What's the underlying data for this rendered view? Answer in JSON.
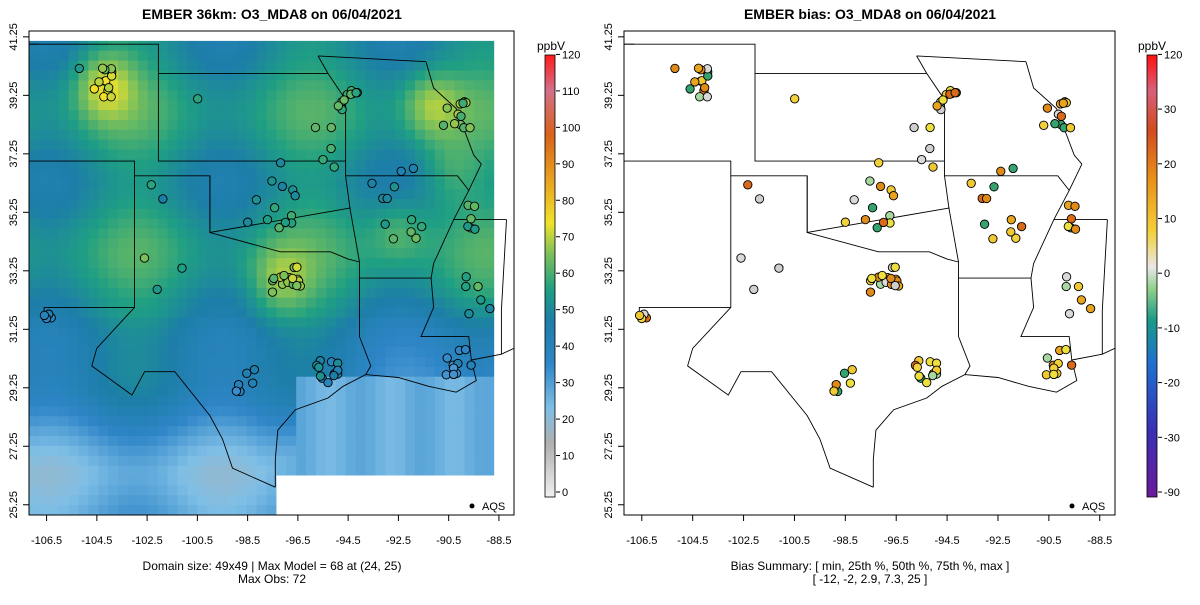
{
  "left_panel": {
    "title": "EMBER 36km: O3_MDA8 on 06/04/2021",
    "footer_line1": "Domain size: 49x49 | Max Model = 68 at (24, 25)",
    "footer_line2": "Max Obs: 72",
    "legend_unit": "ppbV",
    "legend_ticks": [
      "0",
      "10",
      "20",
      "30",
      "40",
      "50",
      "60",
      "70",
      "80",
      "90",
      "100",
      "110",
      "120"
    ],
    "aqs_label": "AQS"
  },
  "right_panel": {
    "title": "EMBER bias: O3_MDA8 on 06/04/2021",
    "footer_line1": "Bias Summary: [ min, 25th %, 50th %, 75th %, max ]",
    "footer_line2": "[ -12,   -2,   2.9,   7.3,   25 ]",
    "legend_unit": "ppbV",
    "legend_ticks": [
      "-90",
      "-30",
      "-20",
      "-10",
      "0",
      "10",
      "20",
      "30",
      "120"
    ],
    "aqs_label": "AQS"
  },
  "x_ticks": [
    "-106.5",
    "-104.5",
    "-102.5",
    "-100.5",
    "-98.5",
    "-96.5",
    "-94.5",
    "-92.5",
    "-90.5",
    "-88.5"
  ],
  "y_ticks": [
    "25.25",
    "27.25",
    "29.25",
    "31.25",
    "33.25",
    "35.25",
    "37.25",
    "39.25",
    "41.25"
  ],
  "colors": {
    "ozone_scale": [
      "#e0e0e0",
      "#9e9e9e",
      "#56a6e0",
      "#2f7fc4",
      "#1d9a8a",
      "#4daa6a",
      "#a8c84a",
      "#f2dc2e",
      "#e8a020",
      "#d75c18",
      "#c52a3a",
      "#e5003a"
    ],
    "bias_scale": [
      "#7a1fa2",
      "#2a3fd0",
      "#1f8fd0",
      "#1ea36a",
      "#e0e0e0",
      "#f3c83a",
      "#e88a1a",
      "#d33a2a",
      "#e0002a"
    ]
  },
  "summary_stats": {
    "domain_size": "49x49",
    "max_model_ppbv": 68,
    "max_model_cell": [
      24,
      25
    ],
    "max_obs_ppbv": 72,
    "bias_min": -12,
    "bias_p25": -2,
    "bias_p50": 2.9,
    "bias_p75": 7.3,
    "bias_max": 25
  }
}
